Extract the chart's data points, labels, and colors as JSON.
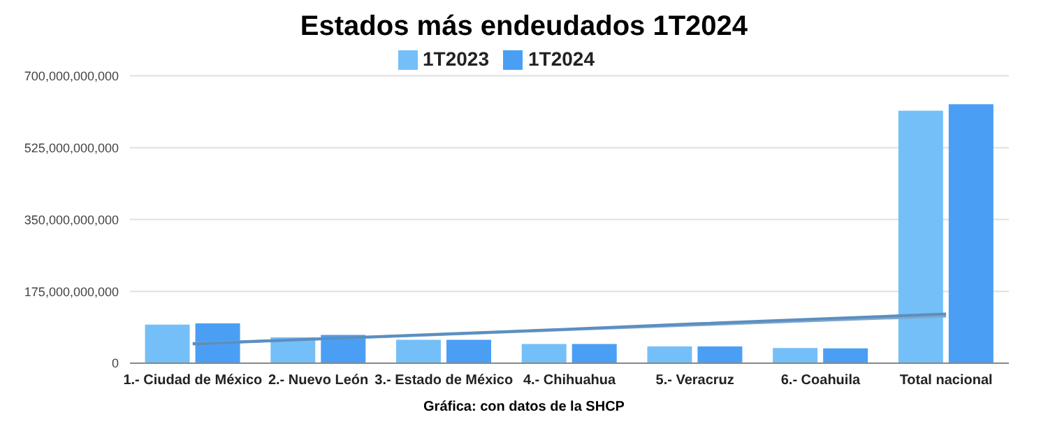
{
  "chart_data": {
    "type": "bar",
    "title": "Estados más endeudados 1T2024",
    "categories": [
      "1.- Ciudad de México",
      "2.- Nuevo León",
      "3.- Estado de México",
      "4.- Chihuahua",
      "5.- Veracruz",
      "6.- Coahuila",
      "Total nacional"
    ],
    "series": [
      {
        "name": "1T2023",
        "color": "#74bff8",
        "values": [
          94000000000,
          63000000000,
          57000000000,
          47000000000,
          41000000000,
          37000000000,
          615000000000
        ]
      },
      {
        "name": "1T2024",
        "color": "#4a9ff5",
        "values": [
          97000000000,
          69000000000,
          57000000000,
          47000000000,
          41000000000,
          36000000000,
          631000000000
        ]
      },
      {
        "type": "line",
        "color": "#7fa8cc",
        "values": [
          48000000000,
          59000000000,
          70000000000,
          82000000000,
          93000000000,
          104000000000,
          115000000000
        ]
      },
      {
        "type": "line",
        "color": "#5b8fc0",
        "values": [
          47000000000,
          59000000000,
          71000000000,
          83000000000,
          96000000000,
          108000000000,
          120000000000
        ]
      }
    ],
    "ylim": [
      0,
      700000000000
    ],
    "yticks": [
      0,
      {
        "value": 175000000000,
        "label": "175,000,000,000"
      },
      {
        "value": 350000000000,
        "label": "350,000,000,000"
      },
      {
        "value": 525000000000,
        "label": "525,000,000,000"
      },
      {
        "value": 700000000000,
        "label": "700,000,000,000"
      }
    ],
    "grid": "y",
    "legend": "top",
    "marker": "none",
    "annotations": [
      "Gráfica: con datos de la SHCP"
    ]
  }
}
